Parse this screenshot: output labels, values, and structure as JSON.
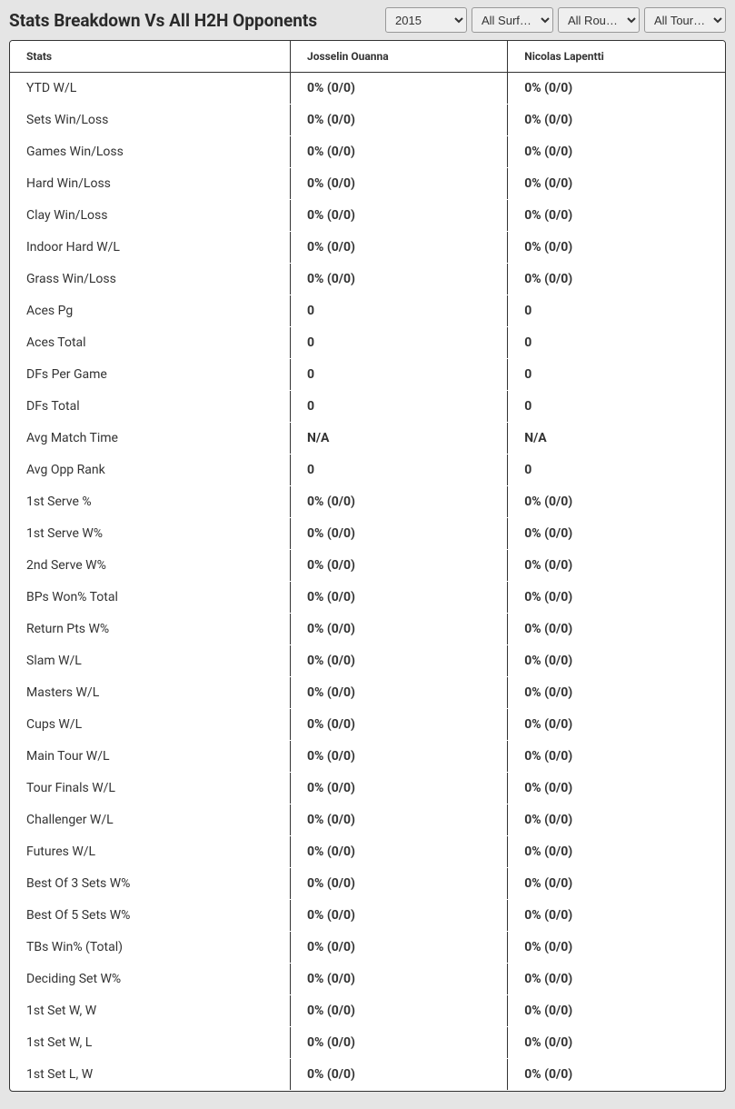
{
  "header": {
    "title": "Stats Breakdown Vs All H2H Opponents"
  },
  "filters": {
    "year": "2015",
    "surface": "All Surf…",
    "round": "All Rou…",
    "tournament": "All Tour…"
  },
  "table": {
    "columns": [
      "Stats",
      "Josselin Ouanna",
      "Nicolas Lapentti"
    ],
    "rows": [
      {
        "stat": "YTD W/L",
        "p1": "0% (0/0)",
        "p2": "0% (0/0)"
      },
      {
        "stat": "Sets Win/Loss",
        "p1": "0% (0/0)",
        "p2": "0% (0/0)"
      },
      {
        "stat": "Games Win/Loss",
        "p1": "0% (0/0)",
        "p2": "0% (0/0)"
      },
      {
        "stat": "Hard Win/Loss",
        "p1": "0% (0/0)",
        "p2": "0% (0/0)"
      },
      {
        "stat": "Clay Win/Loss",
        "p1": "0% (0/0)",
        "p2": "0% (0/0)"
      },
      {
        "stat": "Indoor Hard W/L",
        "p1": "0% (0/0)",
        "p2": "0% (0/0)"
      },
      {
        "stat": "Grass Win/Loss",
        "p1": "0% (0/0)",
        "p2": "0% (0/0)"
      },
      {
        "stat": "Aces Pg",
        "p1": "0",
        "p2": "0"
      },
      {
        "stat": "Aces Total",
        "p1": "0",
        "p2": "0"
      },
      {
        "stat": "DFs Per Game",
        "p1": "0",
        "p2": "0"
      },
      {
        "stat": "DFs Total",
        "p1": "0",
        "p2": "0"
      },
      {
        "stat": "Avg Match Time",
        "p1": "N/A",
        "p2": "N/A"
      },
      {
        "stat": "Avg Opp Rank",
        "p1": "0",
        "p2": "0"
      },
      {
        "stat": "1st Serve %",
        "p1": "0% (0/0)",
        "p2": "0% (0/0)"
      },
      {
        "stat": "1st Serve W%",
        "p1": "0% (0/0)",
        "p2": "0% (0/0)"
      },
      {
        "stat": "2nd Serve W%",
        "p1": "0% (0/0)",
        "p2": "0% (0/0)"
      },
      {
        "stat": "BPs Won% Total",
        "p1": "0% (0/0)",
        "p2": "0% (0/0)"
      },
      {
        "stat": "Return Pts W%",
        "p1": "0% (0/0)",
        "p2": "0% (0/0)"
      },
      {
        "stat": "Slam W/L",
        "p1": "0% (0/0)",
        "p2": "0% (0/0)"
      },
      {
        "stat": "Masters W/L",
        "p1": "0% (0/0)",
        "p2": "0% (0/0)"
      },
      {
        "stat": "Cups W/L",
        "p1": "0% (0/0)",
        "p2": "0% (0/0)"
      },
      {
        "stat": "Main Tour W/L",
        "p1": "0% (0/0)",
        "p2": "0% (0/0)"
      },
      {
        "stat": "Tour Finals W/L",
        "p1": "0% (0/0)",
        "p2": "0% (0/0)"
      },
      {
        "stat": "Challenger W/L",
        "p1": "0% (0/0)",
        "p2": "0% (0/0)"
      },
      {
        "stat": "Futures W/L",
        "p1": "0% (0/0)",
        "p2": "0% (0/0)"
      },
      {
        "stat": "Best Of 3 Sets W%",
        "p1": "0% (0/0)",
        "p2": "0% (0/0)"
      },
      {
        "stat": "Best Of 5 Sets W%",
        "p1": "0% (0/0)",
        "p2": "0% (0/0)"
      },
      {
        "stat": "TBs Win% (Total)",
        "p1": "0% (0/0)",
        "p2": "0% (0/0)"
      },
      {
        "stat": "Deciding Set W%",
        "p1": "0% (0/0)",
        "p2": "0% (0/0)"
      },
      {
        "stat": "1st Set W, W",
        "p1": "0% (0/0)",
        "p2": "0% (0/0)"
      },
      {
        "stat": "1st Set W, L",
        "p1": "0% (0/0)",
        "p2": "0% (0/0)"
      },
      {
        "stat": "1st Set L, W",
        "p1": "0% (0/0)",
        "p2": "0% (0/0)"
      }
    ]
  }
}
